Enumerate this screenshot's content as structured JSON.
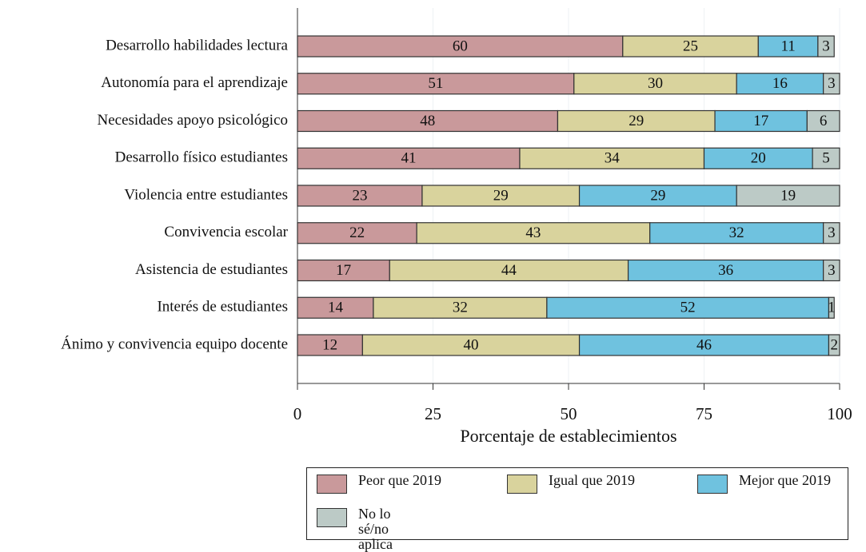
{
  "chart_data": {
    "type": "stacked-bar-horizontal",
    "categories": [
      "Desarrollo habilidades lectura",
      "Autonomía para el aprendizaje",
      "Necesidades apoyo psicológico",
      "Desarrollo físico estudiantes",
      "Violencia entre estudiantes",
      "Convivencia escolar",
      "Asistencia de estudiantes",
      "Interés de estudiantes",
      "Ánimo y convivencia equipo docente"
    ],
    "series": [
      {
        "name": "Peor que 2019",
        "color": "#c9999b",
        "values": [
          60,
          51,
          48,
          41,
          23,
          22,
          17,
          14,
          12
        ]
      },
      {
        "name": "Igual que 2019",
        "color": "#d9d39d",
        "values": [
          25,
          30,
          29,
          34,
          29,
          43,
          44,
          32,
          40
        ]
      },
      {
        "name": "Mejor que 2019",
        "color": "#6fc2df",
        "values": [
          11,
          16,
          17,
          20,
          29,
          32,
          36,
          52,
          46
        ]
      },
      {
        "name": "No lo sé/no aplica",
        "color": "#bccac6",
        "values": [
          3,
          3,
          6,
          5,
          19,
          3,
          3,
          1,
          2
        ]
      }
    ],
    "xlabel": "Porcentaje de establecimientos",
    "xlim": [
      0,
      100
    ],
    "xticks": [
      0,
      25,
      50,
      75,
      100
    ],
    "grid": true
  }
}
